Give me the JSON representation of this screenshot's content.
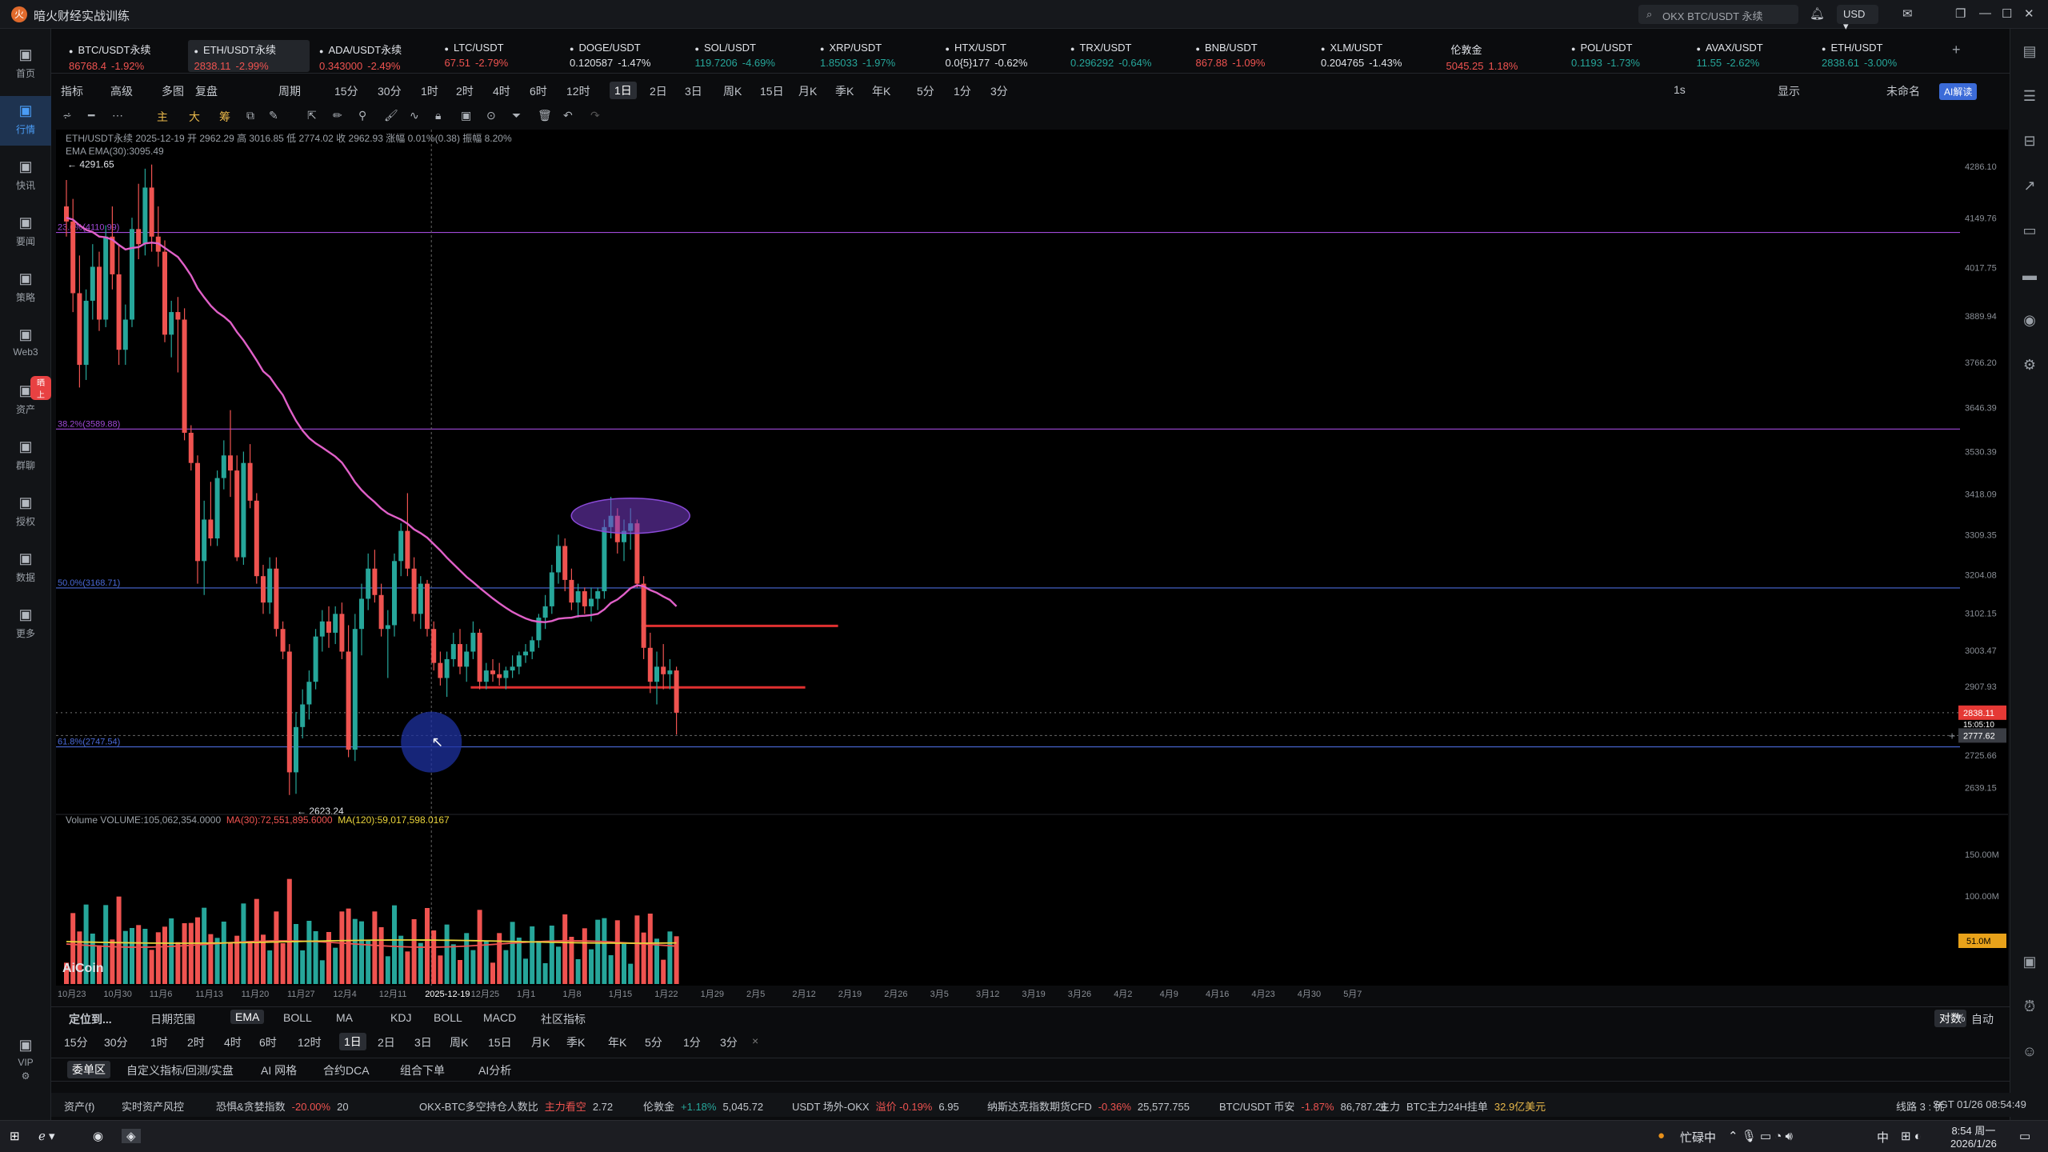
{
  "window": {
    "title": "暗火财经实战训练",
    "logo": "火"
  },
  "search": {
    "placeholder": "OKX BTC/USDT 永续"
  },
  "currency": "USD",
  "sidebar": [
    {
      "label": "首页",
      "icon": "home-icon"
    },
    {
      "label": "行情",
      "icon": "chart-icon",
      "active": true
    },
    {
      "label": "快讯",
      "icon": "news-icon"
    },
    {
      "label": "要闻",
      "icon": "doc-icon"
    },
    {
      "label": "策略",
      "icon": "robot-icon"
    },
    {
      "label": "Web3",
      "icon": "web3-icon"
    },
    {
      "label": "资产",
      "icon": "wallet-icon",
      "badge": "晒上"
    },
    {
      "label": "群聊",
      "icon": "chat-icon"
    },
    {
      "label": "授权",
      "icon": "auth-icon"
    },
    {
      "label": "数据",
      "icon": "data-icon"
    },
    {
      "label": "更多",
      "icon": "more-icon"
    },
    {
      "label": "VIP",
      "icon": "vip-icon"
    }
  ],
  "tickers": [
    {
      "name": "BTC/USDT永续",
      "price": "86768.4",
      "change": "-1.92%",
      "dir": "dn",
      "p_up": true
    },
    {
      "name": "ETH/USDT永续",
      "price": "2838.11",
      "change": "-2.99%",
      "dir": "dn",
      "active": true
    },
    {
      "name": "ADA/USDT永续",
      "price": "0.343000",
      "change": "-2.49%",
      "dir": "dn"
    },
    {
      "name": "LTC/USDT",
      "price": "67.51",
      "change": "-2.79%",
      "dir": "dn"
    },
    {
      "name": "DOGE/USDT",
      "price": "0.120587",
      "change": "-1.47%",
      "dir": "wh"
    },
    {
      "name": "SOL/USDT",
      "price": "119.7206",
      "change": "-4.69%",
      "dir": "up"
    },
    {
      "name": "XRP/USDT",
      "price": "1.85033",
      "change": "-1.97%",
      "dir": "up"
    },
    {
      "name": "HTX/USDT",
      "price": "0.0{5}177",
      "change": "-0.62%",
      "dir": "wh"
    },
    {
      "name": "TRX/USDT",
      "price": "0.296292",
      "change": "-0.64%",
      "dir": "up"
    },
    {
      "name": "BNB/USDT",
      "price": "867.88",
      "change": "-1.09%",
      "dir": "dn"
    },
    {
      "name": "XLM/USDT",
      "price": "0.204765",
      "change": "-1.43%",
      "dir": "wh"
    },
    {
      "name": "伦敦金",
      "price": "5045.25",
      "change": "1.18%",
      "dir": "dn",
      "noicon": true
    },
    {
      "name": "POL/USDT",
      "price": "0.1193",
      "change": "-1.73%",
      "dir": "up"
    },
    {
      "name": "AVAX/USDT",
      "price": "11.55",
      "change": "-2.62%",
      "dir": "up"
    },
    {
      "name": "ETH/USDT",
      "price": "2838.61",
      "change": "-3.00%",
      "dir": "up",
      "close": true
    }
  ],
  "toolbar1": {
    "items": [
      "指标",
      "高级",
      "多图",
      "复盘",
      "周期",
      "15分",
      "30分",
      "1时",
      "2时",
      "4时",
      "6时",
      "12时",
      "1日",
      "2日",
      "3日",
      "周K",
      "15日",
      "月K",
      "季K",
      "年K",
      "5分",
      "1分",
      "3分"
    ],
    "selected": "1日",
    "right": [
      "1s",
      "显示",
      "未命名"
    ],
    "ai": "AI解读"
  },
  "toolbar2": {
    "labels": [
      "主",
      "大",
      "筹"
    ]
  },
  "chart_info": {
    "line1": "ETH/USDT永续  2025-12-19  开 2962.29  高 3016.85  低 2774.02  收 2962.93  涨幅 0.01%(0.38)  振幅 8.20%",
    "line2": "EMA  EMA(30):3095.49",
    "vol": "Volume  VOLUME:105,062,354.0000",
    "vol_ma30": "MA(30):72,551,895.6000",
    "vol_ma120": "MA(120):59,017,598.0167",
    "watermark": "AiCoin"
  },
  "chart_data": {
    "type": "candlestick",
    "title": "ETH/USDT永续",
    "timeframe": "1日",
    "y_axis_ticks": [
      "4286.10",
      "4149.76",
      "4017.75",
      "3889.94",
      "3766.20",
      "3646.39",
      "3530.39",
      "3418.09",
      "3309.35",
      "3204.08",
      "3102.15",
      "3003.47",
      "2907.93",
      "2725.66",
      "2639.15"
    ],
    "x_axis_ticks": [
      "10月23",
      "10月30",
      "11月6",
      "11月13",
      "11月20",
      "11月27",
      "12月4",
      "12月11",
      "2025-12-19",
      "12月25",
      "1月1",
      "1月8",
      "1月15",
      "1月22",
      "1月29",
      "2月5",
      "2月12",
      "2月19",
      "2月26",
      "3月5",
      "3月12",
      "3月19",
      "3月26",
      "4月2",
      "4月9",
      "4月16",
      "4月23",
      "4月30",
      "5月7"
    ],
    "fib_levels": [
      {
        "label": "23.6%(4110.99)",
        "value": 4110.99,
        "color": "#a04ad8"
      },
      {
        "label": "38.2%(3589.88)",
        "value": 3589.88,
        "color": "#a04ad8"
      },
      {
        "label": "50.0%(3168.71)",
        "value": 3168.71,
        "color": "#4a6ad8"
      },
      {
        "label": "61.8%(2747.54)",
        "value": 2747.54,
        "color": "#4a6ad8"
      }
    ],
    "high_marker": "4291.65",
    "low_marker": "2623.24",
    "last_price": "2838.11",
    "countdown": "15:05:10",
    "crosshair_price": "2777.62",
    "crosshair_date": "2025-12-19",
    "hlines": [
      {
        "value": 3068,
        "color": "#e03030"
      },
      {
        "value": 2905,
        "color": "#e03030"
      }
    ],
    "ellipse_center_price": 3360,
    "candles": [
      [
        4180,
        4250,
        4100,
        4140
      ],
      [
        4140,
        4200,
        3900,
        3950
      ],
      [
        3950,
        4050,
        3700,
        3760
      ],
      [
        3760,
        3960,
        3720,
        3930
      ],
      [
        3930,
        4080,
        3880,
        4020
      ],
      [
        4020,
        4060,
        3850,
        3880
      ],
      [
        3880,
        4130,
        3860,
        4100
      ],
      [
        4100,
        4180,
        3960,
        4000
      ],
      [
        4000,
        4080,
        3760,
        3800
      ],
      [
        3800,
        3920,
        3760,
        3880
      ],
      [
        3880,
        4150,
        3860,
        4120
      ],
      [
        4120,
        4240,
        4040,
        4080
      ],
      [
        4080,
        4280,
        4050,
        4230
      ],
      [
        4230,
        4291,
        4060,
        4100
      ],
      [
        4100,
        4180,
        4020,
        4060
      ],
      [
        4060,
        4090,
        3820,
        3840
      ],
      [
        3840,
        3930,
        3780,
        3900
      ],
      [
        3900,
        3940,
        3740,
        3880
      ],
      [
        3880,
        3910,
        3560,
        3580
      ],
      [
        3580,
        3600,
        3480,
        3500
      ],
      [
        3500,
        3520,
        3180,
        3240
      ],
      [
        3240,
        3400,
        3150,
        3350
      ],
      [
        3350,
        3450,
        3280,
        3300
      ],
      [
        3300,
        3480,
        3280,
        3460
      ],
      [
        3460,
        3560,
        3430,
        3520
      ],
      [
        3520,
        3640,
        3410,
        3480
      ],
      [
        3480,
        3520,
        3240,
        3250
      ],
      [
        3250,
        3530,
        3230,
        3500
      ],
      [
        3500,
        3550,
        3380,
        3400
      ],
      [
        3400,
        3420,
        3180,
        3200
      ],
      [
        3200,
        3230,
        3100,
        3130
      ],
      [
        3130,
        3250,
        3100,
        3220
      ],
      [
        3220,
        3250,
        3040,
        3060
      ],
      [
        3060,
        3080,
        2980,
        3000
      ],
      [
        3000,
        3020,
        2620,
        2680
      ],
      [
        2680,
        2840,
        2623,
        2800
      ],
      [
        2800,
        2900,
        2770,
        2860
      ],
      [
        2860,
        2950,
        2820,
        2920
      ],
      [
        2920,
        3060,
        2900,
        3040
      ],
      [
        3040,
        3110,
        3000,
        3080
      ],
      [
        3080,
        3120,
        3010,
        3050
      ],
      [
        3050,
        3120,
        3020,
        3100
      ],
      [
        3100,
        3130,
        2980,
        3000
      ],
      [
        3000,
        3070,
        2720,
        2740
      ],
      [
        2740,
        3100,
        2710,
        3060
      ],
      [
        3060,
        3180,
        2990,
        3140
      ],
      [
        3140,
        3260,
        3110,
        3220
      ],
      [
        3220,
        3270,
        3130,
        3150
      ],
      [
        3150,
        3180,
        3040,
        3060
      ],
      [
        3060,
        3110,
        2930,
        3070
      ],
      [
        3070,
        3260,
        3040,
        3240
      ],
      [
        3240,
        3340,
        3200,
        3320
      ],
      [
        3320,
        3420,
        3200,
        3220
      ],
      [
        3220,
        3250,
        3080,
        3100
      ],
      [
        3100,
        3200,
        3060,
        3180
      ],
      [
        3180,
        3190,
        3040,
        3060
      ],
      [
        3060,
        3080,
        2950,
        2970
      ],
      [
        2970,
        3000,
        2910,
        2930
      ],
      [
        2930,
        3000,
        2880,
        2980
      ],
      [
        2980,
        3050,
        2960,
        3020
      ],
      [
        3020,
        3060,
        2940,
        2960
      ],
      [
        2960,
        3020,
        2920,
        3000
      ],
      [
        3000,
        3080,
        2980,
        3050
      ],
      [
        3050,
        3060,
        2900,
        2920
      ],
      [
        2920,
        2970,
        2900,
        2950
      ],
      [
        2950,
        2980,
        2920,
        2940
      ],
      [
        2940,
        2970,
        2910,
        2930
      ],
      [
        2930,
        2960,
        2900,
        2950
      ],
      [
        2950,
        2990,
        2930,
        2960
      ],
      [
        2960,
        3000,
        2940,
        2990
      ],
      [
        2990,
        3020,
        2970,
        3000
      ],
      [
        3000,
        3040,
        2980,
        3030
      ],
      [
        3030,
        3100,
        3010,
        3090
      ],
      [
        3090,
        3150,
        3060,
        3120
      ],
      [
        3120,
        3230,
        3100,
        3210
      ],
      [
        3210,
        3310,
        3180,
        3280
      ],
      [
        3280,
        3300,
        3160,
        3190
      ],
      [
        3190,
        3220,
        3110,
        3130
      ],
      [
        3130,
        3180,
        3090,
        3160
      ],
      [
        3160,
        3170,
        3100,
        3120
      ],
      [
        3120,
        3170,
        3080,
        3140
      ],
      [
        3140,
        3170,
        3110,
        3160
      ],
      [
        3160,
        3350,
        3140,
        3330
      ],
      [
        3330,
        3410,
        3300,
        3360
      ],
      [
        3360,
        3380,
        3260,
        3290
      ],
      [
        3290,
        3350,
        3240,
        3320
      ],
      [
        3320,
        3380,
        3270,
        3340
      ],
      [
        3340,
        3350,
        3170,
        3180
      ],
      [
        3180,
        3200,
        2980,
        3010
      ],
      [
        3010,
        3050,
        2890,
        2920
      ],
      [
        2920,
        3000,
        2860,
        2960
      ],
      [
        2960,
        3020,
        2900,
        2940
      ],
      [
        2940,
        2980,
        2900,
        2950
      ],
      [
        2950,
        2960,
        2780,
        2838
      ]
    ],
    "ema": [
      4150,
      4145,
      4130,
      4118,
      4112,
      4100,
      4098,
      4092,
      4078,
      4066,
      4070,
      4072,
      4082,
      4084,
      4082,
      4070,
      4058,
      4046,
      4023,
      3997,
      3963,
      3939,
      3917,
      3900,
      3888,
      3873,
      3847,
      3825,
      3799,
      3772,
      3743,
      3728,
      3703,
      3680,
      3644,
      3612,
      3586,
      3566,
      3552,
      3541,
      3529,
      3517,
      3501,
      3476,
      3449,
      3428,
      3411,
      3396,
      3379,
      3366,
      3358,
      3350,
      3339,
      3324,
      3314,
      3302,
      3285,
      3268,
      3249,
      3232,
      3215,
      3198,
      3184,
      3169,
      3155,
      3141,
      3128,
      3116,
      3105,
      3096,
      3088,
      3082,
      3079,
      3078,
      3081,
      3087,
      3089,
      3090,
      3094,
      3095,
      3097,
      3100,
      3112,
      3129,
      3138,
      3152,
      3168,
      3176,
      3173,
      3163,
      3156,
      3146,
      3137,
      3120
    ]
  },
  "volume_axis": {
    "ticks": [
      "150.00M",
      "100.00M"
    ],
    "current": "51.0M"
  },
  "bottom_tabs1": {
    "items": [
      "定位到...",
      "日期范围",
      "EMA",
      "BOLL",
      "MA",
      "KDJ",
      "BOLL",
      "MACD",
      "社区指标"
    ],
    "right": [
      "对数",
      "%",
      "自动"
    ]
  },
  "bottom_tabs2": {
    "items": [
      "15分",
      "30分",
      "1时",
      "2时",
      "4时",
      "6时",
      "12时",
      "1日",
      "2日",
      "3日",
      "周K",
      "15日",
      "月K",
      "季K",
      "年K",
      "5分",
      "1分",
      "3分"
    ],
    "close": "×"
  },
  "bottom_tabs3": {
    "items": [
      "委单区",
      "自定义指标/回测/实盘",
      "AI 网格",
      "合约DCA",
      "组合下单",
      "AI分析"
    ]
  },
  "statusbar": {
    "items": [
      {
        "label": "资产(f)"
      },
      {
        "label": "实时资产风控"
      },
      {
        "label": "恐惧&贪婪指数",
        "val": "-20.00%",
        "extra": "20"
      },
      {
        "label": "OKX-BTC多空持仓人数比",
        "val": "主力看空",
        "extra": "2.72"
      },
      {
        "label": "伦敦金",
        "val": "+1.18%",
        "extra": "5,045.72"
      },
      {
        "label": "USDT 场外-OKX",
        "val": "溢价 -0.19%",
        "extra": "6.95"
      },
      {
        "label": "纳斯达克指数期货CFD",
        "val": "-0.36%",
        "extra": "25,577.755"
      },
      {
        "label": "BTC/USDT 币安",
        "val": "-1.87%",
        "extra": "86,787.26"
      },
      {
        "label": "主力",
        "val": "BTC主力24H挂单",
        "extra": "32.9亿美元"
      }
    ],
    "line": "线路 3 : 优",
    "time": "SGT 01/26 08:54:49"
  },
  "taskbar": {
    "ime": "忙碌中",
    "lang": "中",
    "clock_time": "8:54 周一",
    "clock_date": "2026/1/26"
  }
}
